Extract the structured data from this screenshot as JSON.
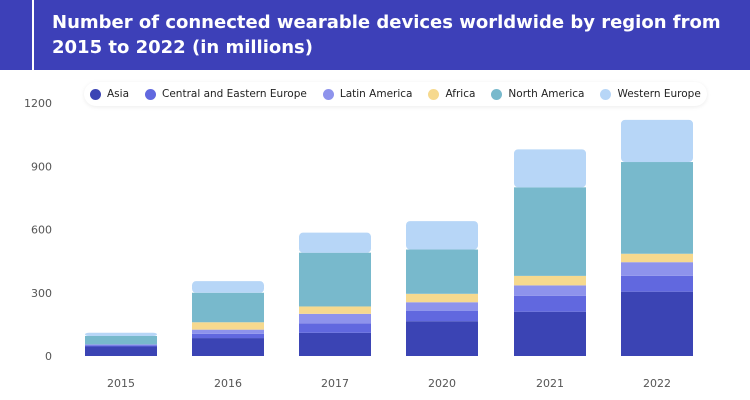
{
  "chart_data": {
    "type": "bar",
    "stacked": true,
    "title": "Number of connected wearable devices worldwide by region from 2015 to 2022 (in millions)",
    "categories": [
      "2015",
      "2016",
      "2017",
      "2020",
      "2021",
      "2022"
    ],
    "ylim": [
      0,
      1200
    ],
    "yticks": [
      0,
      300,
      600,
      900,
      1200
    ],
    "grid": false,
    "legend_position": "top",
    "series": [
      {
        "name": "Asia",
        "color": "#3b44b4",
        "values": [
          45,
          85,
          110,
          165,
          210,
          305
        ]
      },
      {
        "name": "Central and Eastern Europe",
        "color": "#6168df",
        "values": [
          5,
          20,
          45,
          50,
          75,
          75
        ]
      },
      {
        "name": "Latin America",
        "color": "#8e93ec",
        "values": [
          5,
          20,
          45,
          40,
          50,
          65
        ]
      },
      {
        "name": "Africa",
        "color": "#f6d98e",
        "values": [
          0,
          35,
          35,
          40,
          45,
          40
        ]
      },
      {
        "name": "North America",
        "color": "#78b9cc",
        "values": [
          40,
          140,
          255,
          210,
          420,
          435
        ]
      },
      {
        "name": "Western Europe",
        "color": "#b7d6f7",
        "values": [
          15,
          55,
          95,
          135,
          180,
          200
        ]
      }
    ]
  }
}
